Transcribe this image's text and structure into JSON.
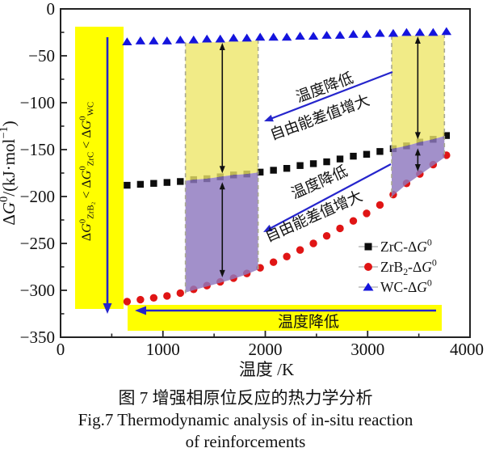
{
  "figure": {
    "caption_line1": "图 7  增强相原位反应的热力学分析",
    "caption_line2": "Fig.7  Thermodynamic analysis of in-situ reaction",
    "caption_line3": "of reinforcements"
  },
  "chart_data": {
    "type": "scatter",
    "title": "",
    "x_axis": {
      "label": "温度 /K",
      "min": 0,
      "max": 4000,
      "major_ticks": [
        0,
        1000,
        2000,
        3000,
        4000
      ],
      "tick_labels": [
        "0",
        "1000",
        "2000",
        "3000",
        "4000"
      ],
      "minor_step": 500
    },
    "y_axis": {
      "label_plain": "ΔG⁰/(kJ·mol⁻¹)",
      "label_segments": [
        {
          "t": "Δ"
        },
        {
          "t": "G",
          "i": 1
        },
        {
          "t": "0",
          "sup": 1
        },
        {
          "t": "/(kJ·mol"
        },
        {
          "t": "−1",
          "sup": 1
        },
        {
          "t": ")"
        }
      ],
      "min": -350,
      "max": 0,
      "major_ticks": [
        0,
        -50,
        -100,
        -150,
        -200,
        -250,
        -300,
        -350
      ],
      "tick_labels": [
        "0",
        "−50",
        "−100",
        "−150",
        "−200",
        "−250",
        "−300",
        "−350"
      ],
      "minor_step": 25
    },
    "temperatures": [
      650,
      780,
      910,
      1040,
      1170,
      1300,
      1430,
      1560,
      1690,
      1820,
      1950,
      2080,
      2210,
      2340,
      2470,
      2600,
      2730,
      2860,
      2990,
      3120,
      3250,
      3380,
      3510,
      3640,
      3770
    ],
    "series": [
      {
        "id": "zrc",
        "name": "ZrC-ΔG⁰",
        "marker": "square",
        "color": "#0d0d0d",
        "legend_segments": [
          {
            "t": "ZrC-Δ"
          },
          {
            "t": "G",
            "i": 1
          },
          {
            "t": "0",
            "sup": 1
          }
        ],
        "values": [
          -188,
          -187,
          -186,
          -185,
          -184,
          -182,
          -181,
          -179,
          -177,
          -176,
          -174,
          -172,
          -170,
          -167,
          -165,
          -163,
          -160,
          -157,
          -155,
          -152,
          -149,
          -146,
          -142,
          -139,
          -135
        ]
      },
      {
        "id": "zrb2",
        "name": "ZrB₂-ΔG⁰",
        "marker": "circle",
        "color": "#e01515",
        "legend_segments": [
          {
            "t": "ZrB"
          },
          {
            "t": "2",
            "sub": 1
          },
          {
            "t": "-Δ"
          },
          {
            "t": "G",
            "i": 1
          },
          {
            "t": "0",
            "sup": 1
          }
        ],
        "values": [
          -312,
          -310,
          -308,
          -306,
          -303,
          -299,
          -295,
          -291,
          -287,
          -282,
          -276,
          -270,
          -264,
          -257,
          -250,
          -242,
          -234,
          -226,
          -218,
          -209,
          -198,
          -186,
          -176,
          -166,
          -156
        ]
      },
      {
        "id": "wc",
        "name": "WC-ΔG⁰",
        "marker": "triangle",
        "color": "#1414dd",
        "legend_segments": [
          {
            "t": "WC-Δ"
          },
          {
            "t": "G",
            "i": 1
          },
          {
            "t": "0",
            "sup": 1
          }
        ],
        "values": [
          -35,
          -34,
          -34,
          -34,
          -33,
          -33,
          -32,
          -32,
          -31,
          -31,
          -30,
          -30,
          -30,
          -29,
          -29,
          -28,
          -28,
          -27,
          -27,
          -26,
          -26,
          -25,
          -25,
          -25,
          -24
        ]
      }
    ],
    "highlight_bands": [
      {
        "t1": 1220,
        "t2": 1930
      },
      {
        "t1": 3235,
        "t2": 3750
      }
    ],
    "band_arrows": [
      {
        "t": 1580
      },
      {
        "t": 3490
      }
    ],
    "annotations": {
      "upper_diagonal": {
        "line1": "温度降低",
        "line2": "自由能差值增大"
      },
      "lower_diagonal": {
        "line1": "温度降低",
        "line2": "自由能差值增大"
      },
      "bottom_band": {
        "text": "温度降低"
      },
      "left_band": {
        "plain": "ΔG⁰ZrB₂ < ΔG⁰ZrC < ΔG⁰WC",
        "segments": [
          {
            "t": "Δ"
          },
          {
            "t": "G",
            "i": 1
          },
          {
            "t": "0",
            "sup": 1
          },
          {
            "t": "ZrB₂",
            "sub": 1
          },
          {
            "t": " < Δ"
          },
          {
            "t": "G",
            "i": 1
          },
          {
            "t": "0",
            "sup": 1
          },
          {
            "t": "ZrC",
            "sub": 1
          },
          {
            "t": " < Δ"
          },
          {
            "t": "G",
            "i": 1
          },
          {
            "t": "0",
            "sup": 1
          },
          {
            "t": "WC",
            "sub": 1
          }
        ]
      }
    },
    "colors": {
      "bright_yellow": "#ffff00",
      "pale_yellow": "rgba(237,230,105,0.8)",
      "purple": "rgba(142,120,190,0.82)",
      "arrow_blue": "#2525cc",
      "dashed_gray": "#a8a890",
      "axis_black": "#222222",
      "marker_black": "#0d0d0d",
      "marker_red": "#e01515",
      "marker_blue": "#1414dd"
    },
    "legend_position": "lower-right",
    "grid": false
  }
}
